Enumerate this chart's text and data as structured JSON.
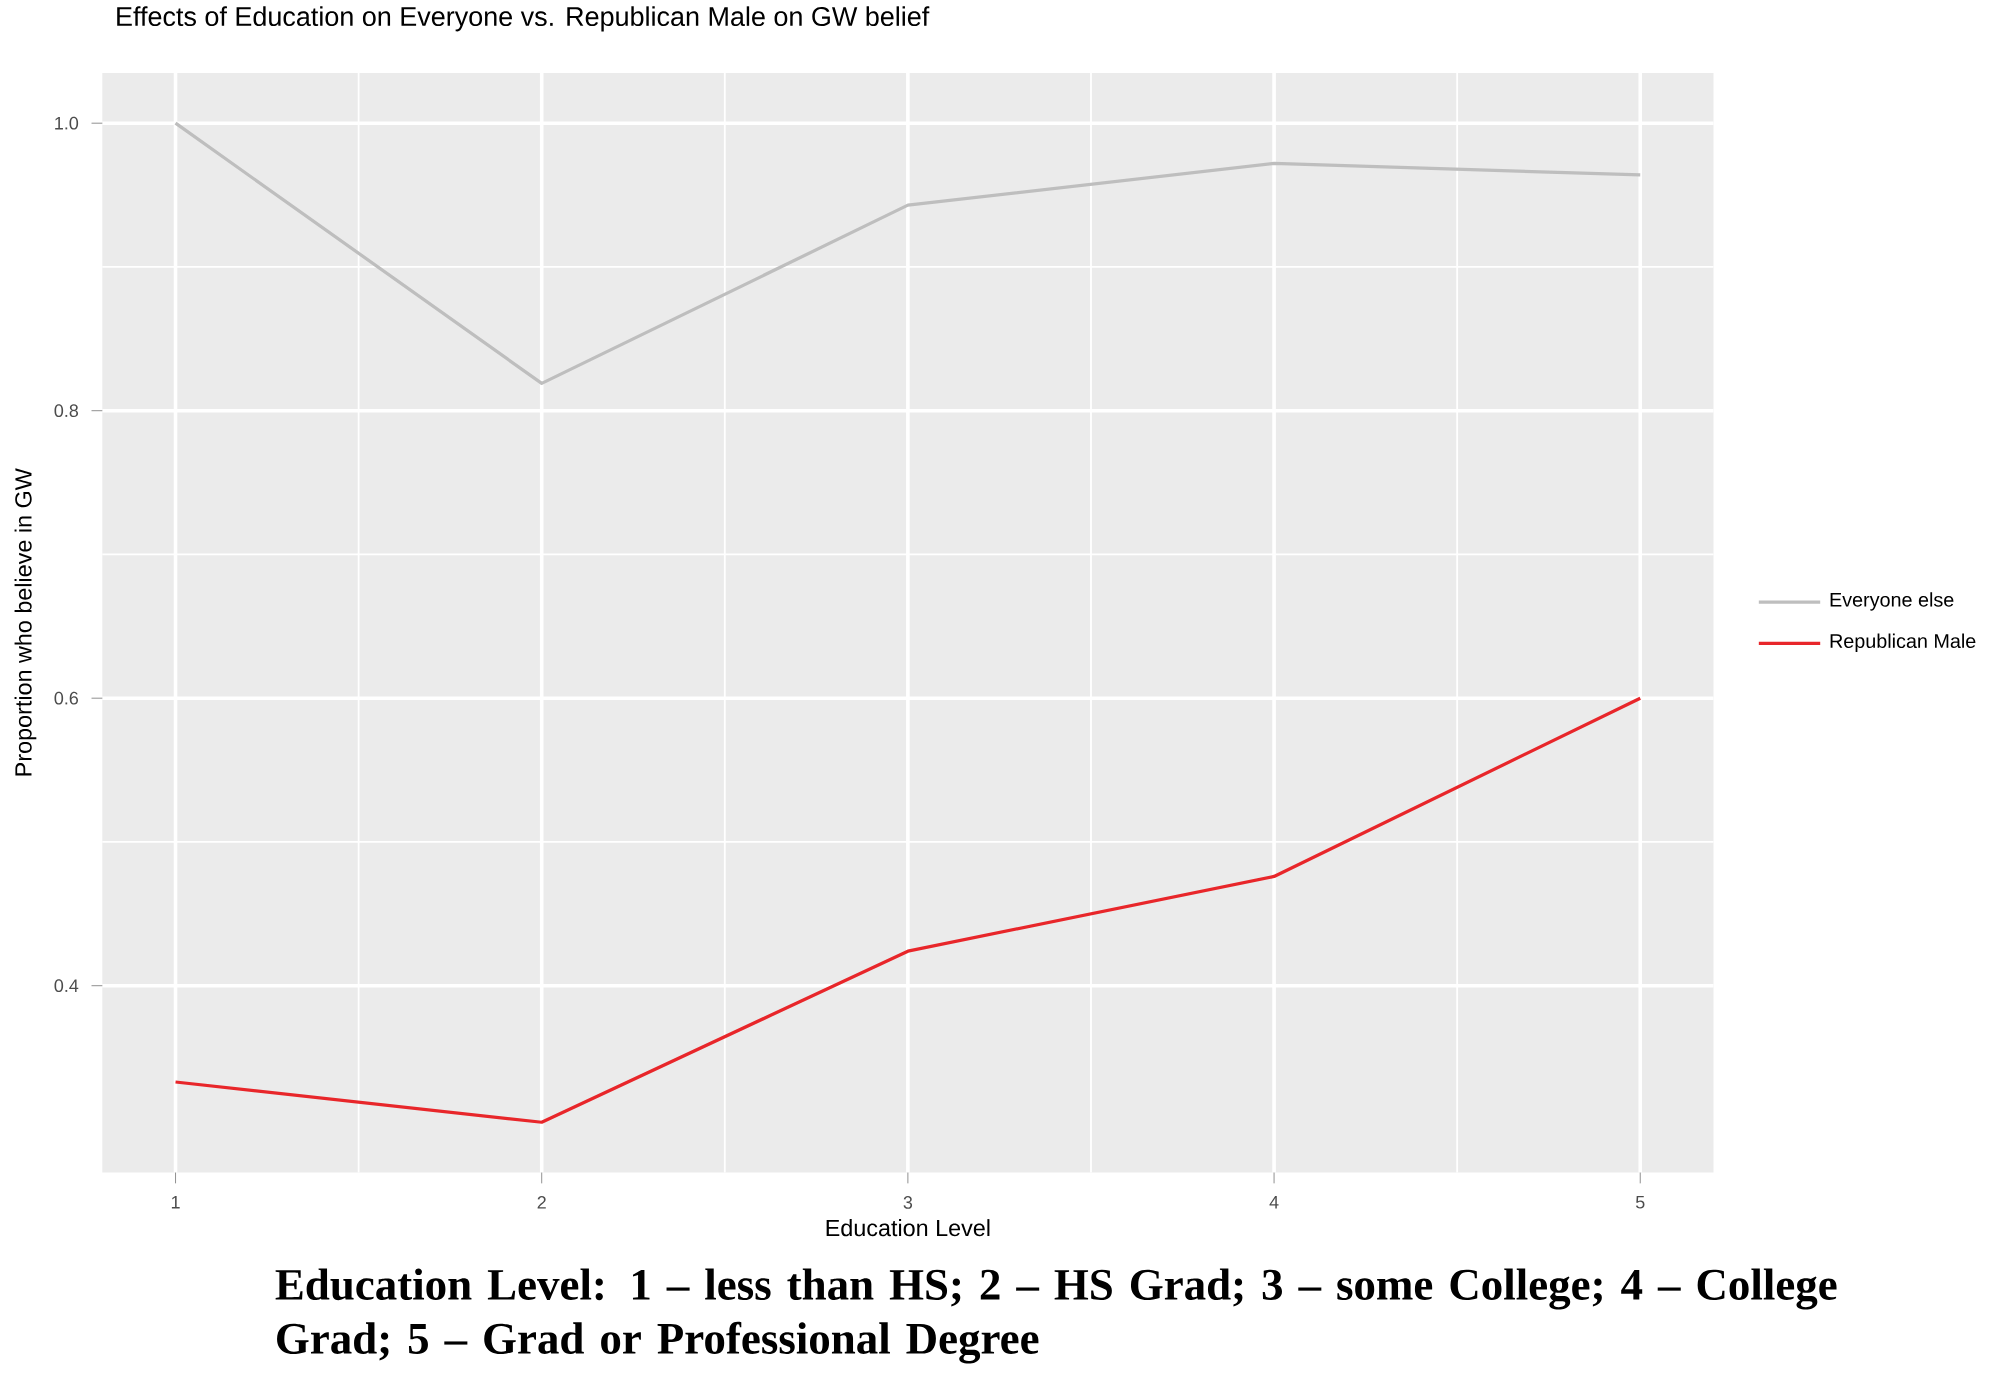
{
  "chart_data": {
    "type": "line",
    "title": "Effects of Education on Everyone vs. Republican Male on GW belief",
    "xlabel": "Education Level",
    "ylabel": "Proportion who believe in GW",
    "x": [
      1,
      2,
      3,
      4,
      5
    ],
    "series": [
      {
        "name": "Everyone else",
        "color": "#bebebe",
        "values": [
          1.0,
          0.819,
          0.943,
          0.972,
          0.964
        ]
      },
      {
        "name": "Republican Male",
        "color": "#e8262a",
        "values": [
          0.333,
          0.305,
          0.424,
          0.476,
          0.6
        ]
      }
    ],
    "xlim": [
      0.8,
      5.2
    ],
    "ylim": [
      0.27,
      1.035
    ],
    "xticks": [
      1,
      2,
      3,
      4,
      5
    ],
    "yticks": [
      0.4,
      0.6,
      0.8,
      {
        "value": 1.0,
        "label": "1.0"
      }
    ],
    "grid": true,
    "legend": "right",
    "marker": "none",
    "line_style": "solid",
    "annotations": [
      "Education Level: 1 – less than HS; 2 – HS Grad; 3 – some College; 4 – College Grad; 5 – Grad or Professional Degree"
    ]
  }
}
